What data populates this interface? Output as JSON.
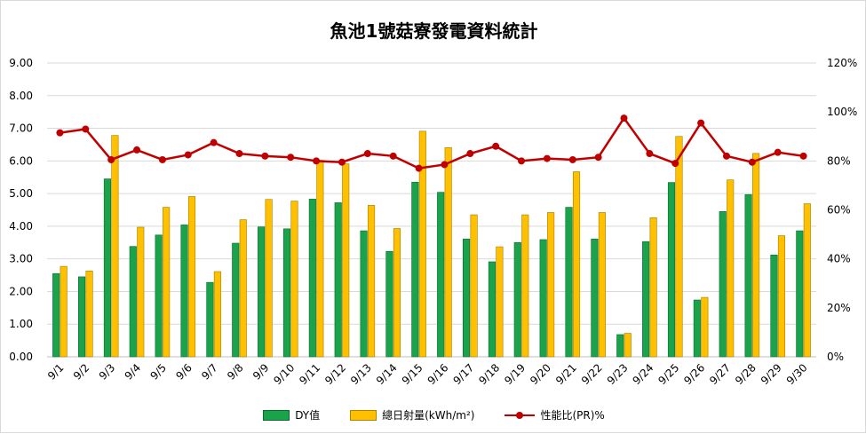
{
  "chart_data": {
    "type": "bar",
    "title": "魚池1號菇寮發電資料統計",
    "categories": [
      "9/1",
      "9/2",
      "9/3",
      "9/4",
      "9/5",
      "9/6",
      "9/7",
      "9/8",
      "9/9",
      "9/10",
      "9/11",
      "9/12",
      "9/13",
      "9/14",
      "9/15",
      "9/16",
      "9/17",
      "9/18",
      "9/19",
      "9/20",
      "9/21",
      "9/22",
      "9/23",
      "9/24",
      "9/25",
      "9/26",
      "9/27",
      "9/28",
      "9/29",
      "9/30"
    ],
    "series": [
      {
        "name": "DY值",
        "kind": "bar",
        "axis": "left",
        "color": "#1aa34a",
        "values": [
          2.55,
          2.45,
          5.45,
          3.38,
          3.73,
          4.04,
          2.28,
          3.48,
          3.98,
          3.92,
          4.83,
          4.72,
          3.86,
          3.23,
          5.35,
          5.04,
          3.61,
          2.91,
          3.5,
          3.59,
          4.58,
          3.61,
          0.68,
          3.53,
          5.34,
          1.74,
          4.45,
          4.97,
          3.12,
          3.86
        ]
      },
      {
        "name": "總日射量(kWh/m²)",
        "kind": "bar",
        "axis": "left",
        "color": "#ffc000",
        "values": [
          2.77,
          2.63,
          6.78,
          3.97,
          4.58,
          4.91,
          2.61,
          4.2,
          4.82,
          4.77,
          6.02,
          5.91,
          4.64,
          3.93,
          6.91,
          6.41,
          4.35,
          3.37,
          4.35,
          4.42,
          5.67,
          4.42,
          0.72,
          4.26,
          6.75,
          1.82,
          5.42,
          6.23,
          3.71,
          4.69
        ]
      },
      {
        "name": "性能比(PR)%",
        "kind": "line",
        "axis": "right",
        "color": "#c00000",
        "values": [
          91.5,
          93.0,
          80.5,
          84.5,
          80.5,
          82.5,
          87.5,
          83.0,
          82.0,
          81.5,
          80.0,
          79.5,
          83.0,
          82.0,
          77.0,
          78.5,
          83.0,
          86.0,
          80.0,
          81.0,
          80.5,
          81.5,
          97.5,
          83.0,
          79.0,
          95.5,
          82.0,
          79.5,
          83.5,
          82.0
        ]
      }
    ],
    "left_axis": {
      "ylim": [
        0,
        9
      ],
      "ticks": [
        "0.00",
        "1.00",
        "2.00",
        "3.00",
        "4.00",
        "5.00",
        "6.00",
        "7.00",
        "8.00",
        "9.00"
      ]
    },
    "right_axis": {
      "ylim": [
        0,
        120
      ],
      "ticks": [
        "0%",
        "20%",
        "40%",
        "60%",
        "80%",
        "100%",
        "120%"
      ]
    },
    "grid": true,
    "legend": "bottom",
    "xlabel": "",
    "ylabel": ""
  }
}
